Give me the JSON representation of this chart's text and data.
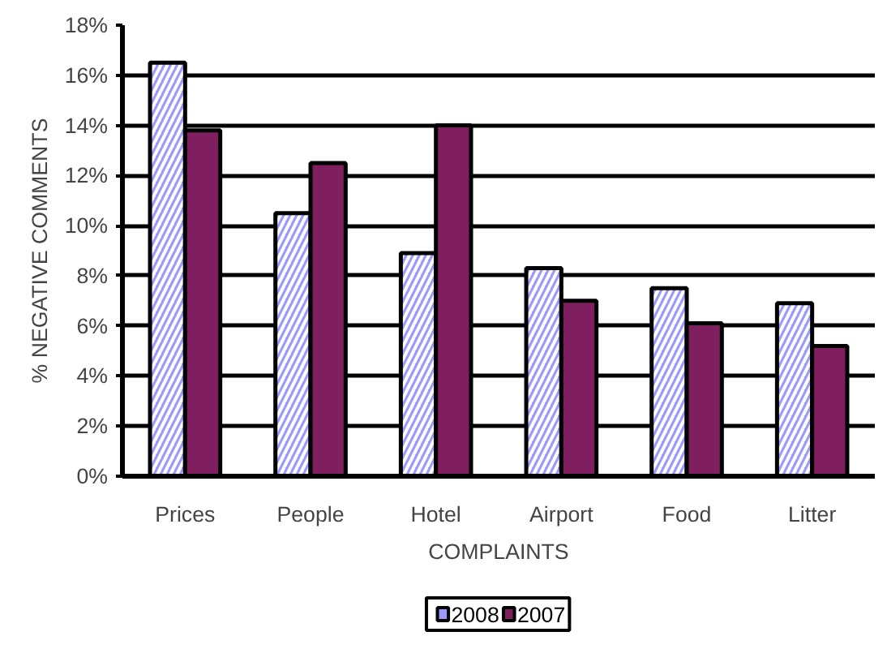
{
  "chart_data": {
    "type": "bar",
    "xlabel": "COMPLAINTS",
    "ylabel": "% NEGATIVE COMMENTS",
    "categories": [
      "Prices",
      "People",
      "Hotel",
      "Airport",
      "Food",
      "Litter"
    ],
    "series": [
      {
        "name": "2008",
        "color": "#9999ff",
        "values": [
          16.5,
          10.5,
          8.9,
          8.3,
          7.5,
          6.9
        ]
      },
      {
        "name": "2007",
        "color": "#7f1f5f",
        "values": [
          13.8,
          12.5,
          14.0,
          7.0,
          6.1,
          5.2
        ]
      }
    ],
    "ylim": [
      0,
      18
    ],
    "yticks": [
      {
        "value": 0,
        "label": "0%"
      },
      {
        "value": 2,
        "label": "2%"
      },
      {
        "value": 4,
        "label": "4%"
      },
      {
        "value": 6,
        "label": "6%"
      },
      {
        "value": 8,
        "label": "8%"
      },
      {
        "value": 10,
        "label": "10%"
      },
      {
        "value": 12,
        "label": "12%"
      },
      {
        "value": 14,
        "label": "14%"
      },
      {
        "value": 16,
        "label": "16%"
      },
      {
        "value": 18,
        "label": "18%"
      }
    ],
    "grid": "y",
    "legend": "bottom"
  }
}
